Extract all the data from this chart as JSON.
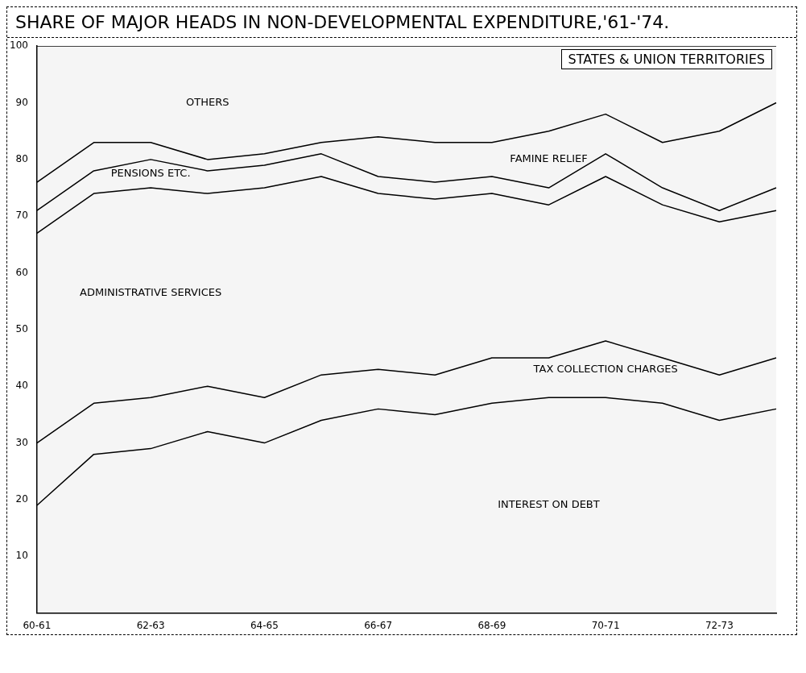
{
  "chart_data": {
    "type": "area",
    "stacked": true,
    "title": "SHARE OF MAJOR HEADS IN NON-DEVELOPMENTAL EXPENDITURE,'61-'74.",
    "subtitle": "STATES & UNION TERRITORIES",
    "categories": [
      "60-61",
      null,
      "62-63",
      null,
      "64-65",
      null,
      "66-67",
      null,
      "68-69",
      null,
      "70-71",
      null,
      "72-73",
      null
    ],
    "series": [
      {
        "name": "INTEREST ON DEBT",
        "color": "#000000",
        "values": [
          19,
          28,
          29,
          32,
          30,
          34,
          36,
          35,
          37,
          38,
          38,
          37,
          34,
          36
        ]
      },
      {
        "name": "TAX COLLECTION CHARGES",
        "color": "#000000",
        "values": [
          11,
          9,
          9,
          8,
          8,
          8,
          7,
          7,
          8,
          7,
          10,
          8,
          8,
          9
        ]
      },
      {
        "name": "ADMINISTRATIVE SERVICES",
        "color": "#000000",
        "values": [
          37,
          37,
          37,
          34,
          37,
          35,
          31,
          31,
          29,
          27,
          29,
          27,
          27,
          26
        ]
      },
      {
        "name": "PENSIONS ETC.",
        "color": "#000000",
        "values": [
          4,
          4,
          5,
          4,
          4,
          4,
          3,
          3,
          3,
          3,
          4,
          3,
          2,
          4
        ]
      },
      {
        "name": "FAMINE RELIEF",
        "color": "#000000",
        "values": [
          5,
          5,
          3,
          2,
          2,
          2,
          7,
          7,
          6,
          10,
          7,
          8,
          14,
          15
        ]
      },
      {
        "name": "OTHERS",
        "color": "#000000",
        "values": [
          24,
          17,
          17,
          20,
          19,
          17,
          16,
          17,
          17,
          15,
          12,
          17,
          15,
          10
        ]
      }
    ],
    "ylim": [
      0,
      100
    ],
    "yticks": [
      10,
      20,
      30,
      40,
      50,
      60,
      70,
      80,
      90,
      100
    ],
    "grid": false,
    "legend": false
  }
}
